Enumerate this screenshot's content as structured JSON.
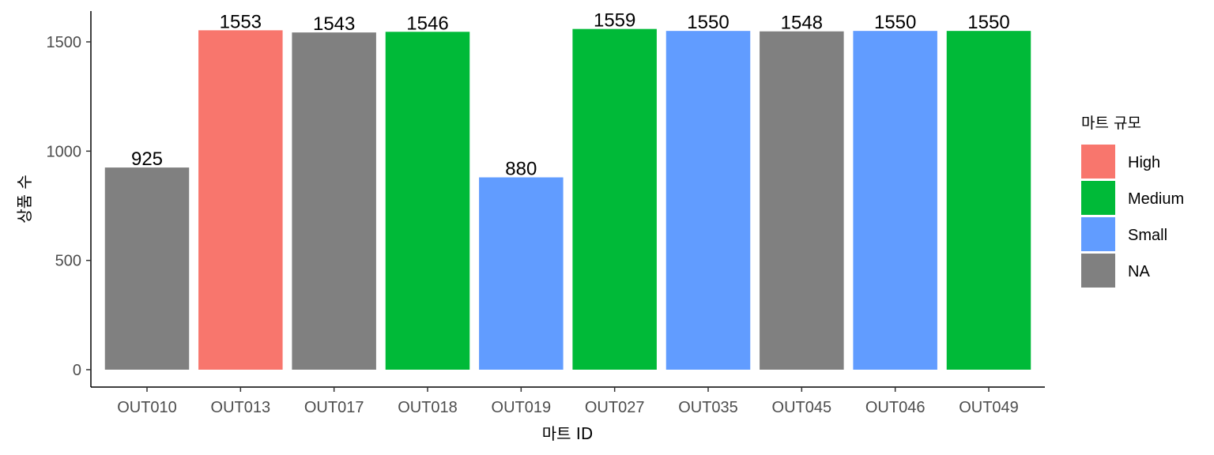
{
  "chart_data": {
    "type": "bar",
    "categories": [
      "OUT010",
      "OUT013",
      "OUT017",
      "OUT018",
      "OUT019",
      "OUT027",
      "OUT035",
      "OUT045",
      "OUT046",
      "OUT049"
    ],
    "values": [
      925,
      1553,
      1543,
      1546,
      880,
      1559,
      1550,
      1548,
      1550,
      1550
    ],
    "data_labels": [
      "925",
      "1553",
      "1543",
      "1546",
      "880",
      "1559",
      "1550",
      "1548",
      "1550",
      "1550"
    ],
    "groups": [
      "NA",
      "High",
      "NA",
      "Medium",
      "Small",
      "Medium",
      "Small",
      "NA",
      "Small",
      "Medium"
    ],
    "xlabel": "마트 ID",
    "ylabel": "상품 수",
    "yticks": [
      0,
      500,
      1000,
      1500
    ],
    "ylim": [
      0,
      1600
    ],
    "grid": false,
    "legend": {
      "title": "마트 규모",
      "placement": "right",
      "entries": [
        {
          "label": "High",
          "color": "#F8766D"
        },
        {
          "label": "Medium",
          "color": "#00BA38"
        },
        {
          "label": "Small",
          "color": "#619CFF"
        },
        {
          "label": "NA",
          "color": "#808080"
        }
      ]
    }
  }
}
